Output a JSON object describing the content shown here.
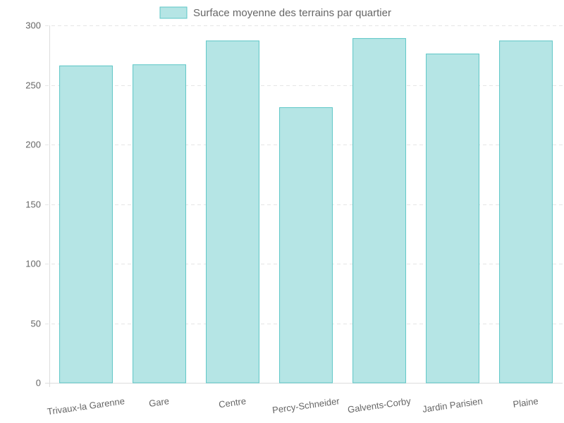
{
  "chart_data": {
    "type": "bar",
    "categories": [
      "Trivaux-la Garenne",
      "Gare",
      "Centre",
      "Percy-Schneider",
      "Galvents-Corby",
      "Jardin Parisien",
      "Plaine"
    ],
    "series": [
      {
        "name": "Surface moyenne des terrains par quartier",
        "values": [
          266,
          267,
          287,
          231,
          289,
          276,
          287
        ]
      }
    ],
    "ylim": [
      0,
      300
    ],
    "yticks": [
      0,
      50,
      100,
      150,
      200,
      250,
      300
    ],
    "grid": true,
    "legend_position": "top",
    "colors": {
      "bar_fill": "#b5e5e5",
      "bar_stroke": "#5cc6c6",
      "text": "#666666",
      "grid": "#e5e5e5"
    }
  }
}
